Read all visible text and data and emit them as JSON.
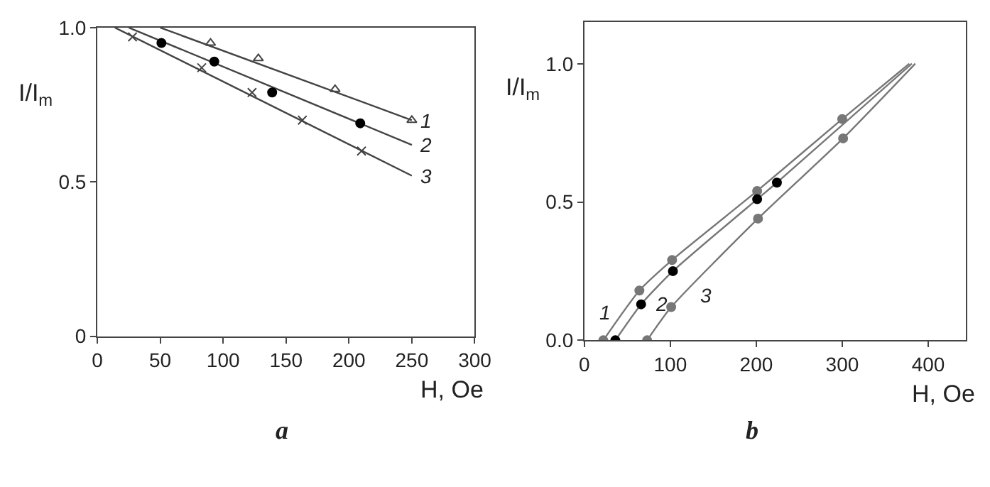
{
  "chart_data": [
    {
      "type": "line",
      "title": "a",
      "xlabel": "H, Oe",
      "ylabel": "I/I$_{m}$",
      "xlim": [
        0,
        300
      ],
      "ylim": [
        0,
        1.0
      ],
      "xticks": [
        0,
        50,
        100,
        150,
        200,
        250,
        300
      ],
      "yticks": [
        {
          "value": 0,
          "label": "0"
        },
        {
          "value": 0.5,
          "label": "0.5"
        },
        {
          "value": 1.0,
          "label": "1.0"
        }
      ],
      "line_style": "solid",
      "series": [
        {
          "type": "line",
          "marker": "none",
          "color": "#444444",
          "x": [
            50,
            250
          ],
          "values": [
            1.0,
            0.7
          ]
        },
        {
          "type": "line",
          "marker": "none",
          "color": "#444444",
          "x": [
            25,
            250
          ],
          "values": [
            1.0,
            0.62
          ]
        },
        {
          "type": "line",
          "marker": "none",
          "color": "#444444",
          "x": [
            14,
            250
          ],
          "values": [
            1.0,
            0.52
          ]
        },
        {
          "type": "scatter",
          "marker": "triangle",
          "color": "#444444",
          "x": [
            90,
            128,
            189,
            250
          ],
          "values": [
            0.95,
            0.9,
            0.8,
            0.7
          ]
        },
        {
          "type": "scatter",
          "marker": "circle",
          "color": "#000000",
          "x": [
            51,
            93,
            139,
            209
          ],
          "values": [
            0.95,
            0.89,
            0.79,
            0.69
          ]
        },
        {
          "type": "scatter",
          "marker": "cross",
          "color": "#444444",
          "x": [
            28,
            83,
            123,
            163,
            210
          ],
          "values": [
            0.97,
            0.87,
            0.79,
            0.7,
            0.6
          ]
        }
      ],
      "annotations": [
        {
          "text": "1",
          "x": 250,
          "y": 0.7
        },
        {
          "text": "2",
          "x": 250,
          "y": 0.62
        },
        {
          "text": "3",
          "x": 250,
          "y": 0.52
        }
      ]
    },
    {
      "type": "line",
      "title": "b",
      "xlabel": "H, Oe",
      "ylabel": "I/I$_{m}$",
      "xlim": [
        0,
        444
      ],
      "ylim": [
        0,
        1.15
      ],
      "xticks": [
        0,
        100,
        200,
        300,
        400
      ],
      "yticks": [
        {
          "value": 0,
          "label": "0.0"
        },
        {
          "value": 0.5,
          "label": "0.5"
        },
        {
          "value": 1.0,
          "label": "1.0"
        }
      ],
      "line_style": "solid",
      "series": [
        {
          "type": "line",
          "marker": "none",
          "color": "#777777",
          "x": [
            22,
            64,
            102,
            201,
            300,
            378
          ],
          "values": [
            0,
            0.18,
            0.29,
            0.54,
            0.8,
            1.0
          ]
        },
        {
          "type": "line",
          "marker": "none",
          "color": "#777777",
          "x": [
            36,
            66,
            103,
            201,
            224,
            381
          ],
          "values": [
            0,
            0.13,
            0.25,
            0.51,
            0.57,
            1.0
          ]
        },
        {
          "type": "line",
          "marker": "none",
          "color": "#777777",
          "x": [
            73,
            101,
            202,
            301,
            385
          ],
          "values": [
            0,
            0.12,
            0.44,
            0.73,
            1.0
          ]
        },
        {
          "type": "scatter",
          "marker": "circle",
          "color": "#777777",
          "x": [
            22,
            64,
            102,
            201,
            300
          ],
          "values": [
            0,
            0.18,
            0.29,
            0.54,
            0.8
          ]
        },
        {
          "type": "scatter",
          "marker": "circle",
          "color": "#000000",
          "x": [
            36,
            66,
            103,
            201,
            224
          ],
          "values": [
            0,
            0.13,
            0.25,
            0.51,
            0.57
          ]
        },
        {
          "type": "scatter",
          "marker": "circle",
          "color": "#777777",
          "x": [
            73,
            101,
            202,
            301
          ],
          "values": [
            0,
            0.12,
            0.44,
            0.73
          ]
        }
      ],
      "annotations": [
        {
          "text": "1",
          "x": 64,
          "y": 0.18
        },
        {
          "text": "2",
          "x": 66,
          "y": 0.13
        },
        {
          "text": "3",
          "x": 101,
          "y": 0.12
        }
      ]
    }
  ]
}
